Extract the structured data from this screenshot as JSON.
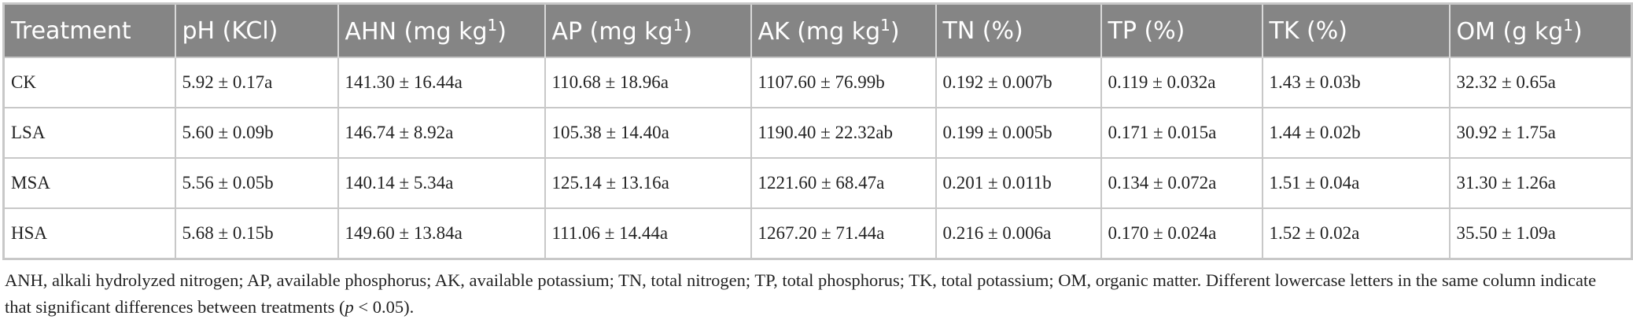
{
  "table": {
    "header": [
      {
        "text": "Treatment"
      },
      {
        "text": "pH (KCl)"
      },
      {
        "text": "AHN (mg kg",
        "sup": "1",
        "after": ")"
      },
      {
        "text": "AP (mg kg",
        "sup": "1",
        "after": ")"
      },
      {
        "text": "AK (mg kg",
        "sup": "1",
        "after": ")"
      },
      {
        "text": "TN (%)"
      },
      {
        "text": "TP (%)"
      },
      {
        "text": "TK (%)"
      },
      {
        "text": "OM (g kg",
        "sup": "1",
        "after": ")"
      }
    ],
    "rows": [
      [
        "CK",
        "5.92 ± 0.17a",
        "141.30 ± 16.44a",
        "110.68 ± 18.96a",
        "1107.60 ± 76.99b",
        "0.192 ± 0.007b",
        "0.119 ± 0.032a",
        "1.43 ± 0.03b",
        "32.32 ± 0.65a"
      ],
      [
        "LSA",
        "5.60 ± 0.09b",
        "146.74 ± 8.92a",
        "105.38 ± 14.40a",
        "1190.40 ± 22.32ab",
        "0.199 ± 0.005b",
        "0.171 ± 0.015a",
        "1.44 ± 0.02b",
        "30.92 ± 1.75a"
      ],
      [
        "MSA",
        "5.56 ± 0.05b",
        "140.14 ± 5.34a",
        "125.14 ± 13.16a",
        "1221.60 ± 68.47a",
        "0.201 ± 0.011b",
        "0.134 ± 0.072a",
        "1.51 ± 0.04a",
        "31.30 ± 1.26a"
      ],
      [
        "HSA",
        "5.68 ± 0.15b",
        "149.60 ± 13.84a",
        "111.06 ± 14.44a",
        "1267.20 ± 71.44a",
        "0.216 ± 0.006a",
        "0.170 ± 0.024a",
        "1.52 ± 0.02a",
        "35.50 ± 1.09a"
      ]
    ]
  },
  "footnote": {
    "text": "ANH, alkali hydrolyzed nitrogen; AP, available phosphorus; AK, available potassium; TN, total nitrogen; TP, total phosphorus; TK, total potassium; OM, organic matter. Different lowercase letters in the same column indicate that significant differences between treatments (",
    "italic": "p",
    "after": " < 0.05)."
  }
}
